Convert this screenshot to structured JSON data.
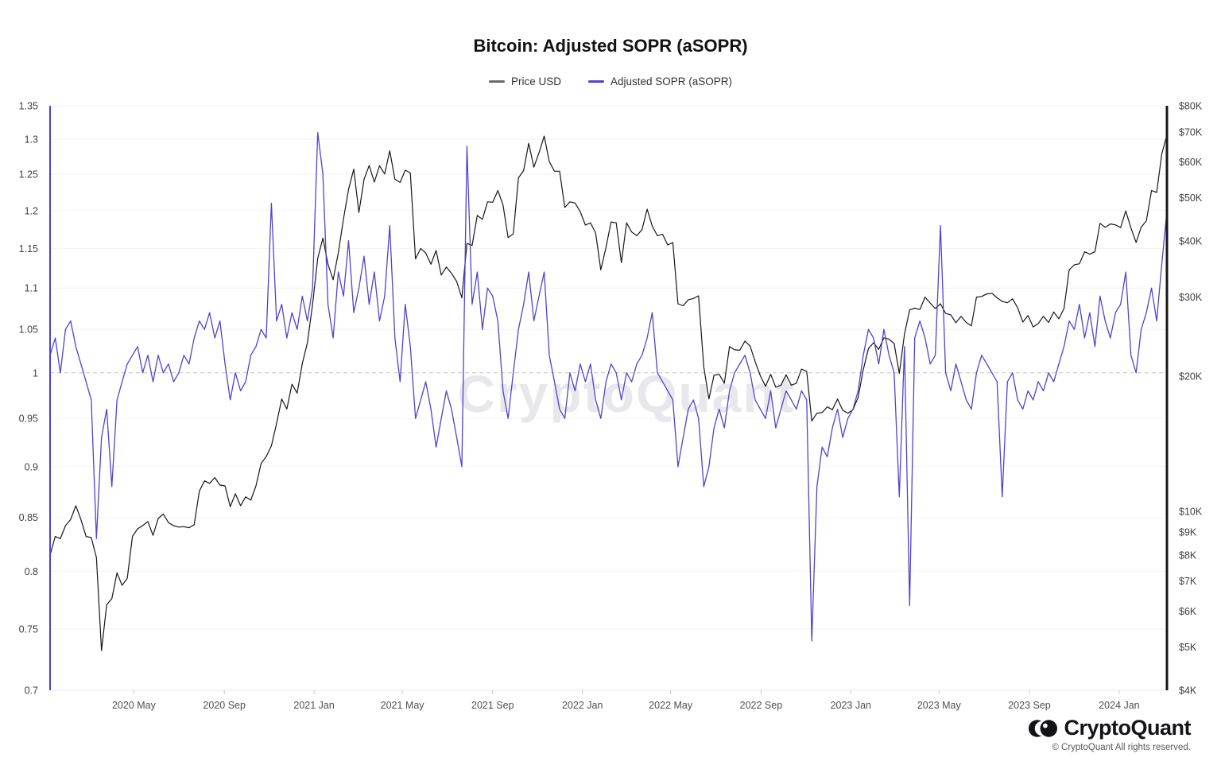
{
  "title": "Bitcoin: Adjusted SOPR (aSOPR)",
  "legend": [
    {
      "label": "Price USD",
      "color": "#6a6a6a"
    },
    {
      "label": "Adjusted SOPR (aSOPR)",
      "color": "#4f43d1"
    }
  ],
  "watermark": "CryptoQuant",
  "footer": {
    "brand": "CryptoQuant",
    "copyright": "© CryptoQuant All rights reserved."
  },
  "chart_data": {
    "type": "line",
    "title": "Bitcoin: Adjusted SOPR (aSOPR)",
    "x_start_date": "2020-01-08",
    "x_interval_days": 7,
    "cadence": "weekly (approx. trace of daily data)",
    "x_ticks": [
      {
        "label": "2020 May",
        "date": "2020-05-01"
      },
      {
        "label": "2020 Sep",
        "date": "2020-09-01"
      },
      {
        "label": "2021 Jan",
        "date": "2021-01-01"
      },
      {
        "label": "2021 May",
        "date": "2021-05-01"
      },
      {
        "label": "2021 Sep",
        "date": "2021-09-01"
      },
      {
        "label": "2022 Jan",
        "date": "2022-01-01"
      },
      {
        "label": "2022 May",
        "date": "2022-05-01"
      },
      {
        "label": "2022 Sep",
        "date": "2022-09-01"
      },
      {
        "label": "2023 Jan",
        "date": "2023-01-01"
      },
      {
        "label": "2023 May",
        "date": "2023-05-01"
      },
      {
        "label": "2023 Sep",
        "date": "2023-09-01"
      },
      {
        "label": "2024 Jan",
        "date": "2024-01-01"
      }
    ],
    "left_axis": {
      "scale": "log",
      "range": [
        0.7,
        1.35
      ],
      "tick_values": [
        1.35,
        1.3,
        1.25,
        1.2,
        1.15,
        1.1,
        1.05,
        1,
        0.95,
        0.9,
        0.85,
        0.8,
        0.75,
        0.7
      ],
      "tick_labels": [
        "1.35",
        "1.3",
        "1.25",
        "1.2",
        "1.15",
        "1.1",
        "1.05",
        "1",
        "0.95",
        "0.9",
        "0.85",
        "0.8",
        "0.75",
        "0.7"
      ]
    },
    "right_axis": {
      "scale": "log",
      "range_usd": [
        4000,
        80000
      ],
      "tick_values_usd": [
        80000,
        70000,
        60000,
        50000,
        40000,
        30000,
        20000,
        10000,
        9000,
        8000,
        7000,
        6000,
        5000,
        4000
      ],
      "tick_labels": [
        "$80K",
        "$70K",
        "$60K",
        "$50K",
        "$40K",
        "$30K",
        "$20K",
        "$10K",
        "$9K",
        "$8K",
        "$7K",
        "$6K",
        "$5K",
        "$4K"
      ]
    },
    "reference_line": 1.0,
    "grid": "horizontal-only",
    "legend_position": "top-center",
    "series": [
      {
        "name": "Price USD",
        "axis": "right",
        "color": "#17171a",
        "values": [
          8000,
          8800,
          8700,
          9300,
          9600,
          10300,
          9600,
          8800,
          8750,
          7900,
          4900,
          6200,
          6400,
          7300,
          6850,
          7100,
          8800,
          9150,
          9300,
          9500,
          8850,
          9650,
          9870,
          9450,
          9300,
          9230,
          9250,
          9200,
          9350,
          11100,
          11700,
          11550,
          11900,
          11450,
          11400,
          10250,
          10950,
          10300,
          10780,
          10600,
          11400,
          12800,
          13250,
          14000,
          15700,
          17800,
          16900,
          19200,
          18350,
          21350,
          23750,
          28900,
          36600,
          40600,
          35500,
          32800,
          37700,
          44800,
          52100,
          57800,
          46300,
          54900,
          58900,
          54100,
          58800,
          56400,
          63500,
          54900,
          54000,
          57500,
          56700,
          36500,
          38500,
          37600,
          35500,
          38100,
          33600,
          35000,
          33900,
          32500,
          29900,
          39500,
          39100,
          45600,
          44700,
          48900,
          48800,
          51800,
          48100,
          40700,
          41500,
          55300,
          57400,
          66000,
          58400,
          62900,
          68500,
          60100,
          57200,
          57200,
          47500,
          48900,
          48600,
          46500,
          43400,
          43900,
          41700,
          34500,
          38700,
          44100,
          43900,
          35800,
          43900,
          41900,
          41100,
          42400,
          47100,
          43200,
          41100,
          41400,
          39200,
          39700,
          29000,
          28700,
          29600,
          29800,
          30200,
          21000,
          17800,
          20100,
          20200,
          19300,
          23300,
          22900,
          22850,
          23950,
          23350,
          21550,
          20050,
          19000,
          20200,
          18900,
          19100,
          20150,
          19100,
          19300,
          20750,
          20500,
          15900,
          16550,
          16600,
          17100,
          16850,
          17800,
          16800,
          16550,
          16850,
          17950,
          20700,
          23050,
          23750,
          22950,
          24350,
          24200,
          23650,
          20300,
          24800,
          28100,
          28350,
          28150,
          30000,
          29100,
          28300,
          29000,
          27600,
          27400,
          26300,
          27200,
          26350,
          25900,
          30000,
          30100,
          30500,
          30600,
          29900,
          29350,
          29150,
          29750,
          28400,
          26400,
          27300,
          25750,
          26200,
          27200,
          26350,
          27800,
          26850,
          28300,
          34500,
          35400,
          35600,
          37850,
          37400,
          37850,
          43800,
          42900,
          43650,
          43450,
          42850,
          46650,
          42750,
          39700,
          42950,
          44350,
          51800,
          51300,
          62500,
          68900
        ]
      },
      {
        "name": "Adjusted SOPR (aSOPR)",
        "axis": "left",
        "color": "#4f43d1",
        "values": [
          1.02,
          1.04,
          1.0,
          1.05,
          1.06,
          1.03,
          1.01,
          0.99,
          0.97,
          0.83,
          0.93,
          0.96,
          0.88,
          0.97,
          0.99,
          1.01,
          1.02,
          1.03,
          1.0,
          1.02,
          0.99,
          1.02,
          1.0,
          1.01,
          0.99,
          1.0,
          1.02,
          1.01,
          1.04,
          1.06,
          1.05,
          1.07,
          1.04,
          1.06,
          1.01,
          0.97,
          1.0,
          0.98,
          0.99,
          1.02,
          1.03,
          1.05,
          1.04,
          1.21,
          1.06,
          1.08,
          1.04,
          1.07,
          1.05,
          1.09,
          1.06,
          1.1,
          1.31,
          1.25,
          1.08,
          1.04,
          1.12,
          1.09,
          1.16,
          1.07,
          1.1,
          1.14,
          1.08,
          1.12,
          1.06,
          1.09,
          1.18,
          1.04,
          0.99,
          1.08,
          1.03,
          0.95,
          0.97,
          0.99,
          0.96,
          0.92,
          0.95,
          0.98,
          0.96,
          0.93,
          0.9,
          1.29,
          1.08,
          1.12,
          1.05,
          1.1,
          1.09,
          1.06,
          0.98,
          0.95,
          1.0,
          1.05,
          1.08,
          1.12,
          1.06,
          1.09,
          1.12,
          1.02,
          0.99,
          0.96,
          0.95,
          1.0,
          0.98,
          1.01,
          0.99,
          1.01,
          0.97,
          0.95,
          0.99,
          1.01,
          1.0,
          0.97,
          1.0,
          0.99,
          1.01,
          1.02,
          1.04,
          1.07,
          1.0,
          0.99,
          0.98,
          0.97,
          0.9,
          0.93,
          0.96,
          0.97,
          0.95,
          0.88,
          0.9,
          0.94,
          0.96,
          0.94,
          0.98,
          1.0,
          1.01,
          1.02,
          1.0,
          0.97,
          0.96,
          0.95,
          0.98,
          0.94,
          0.96,
          0.98,
          0.97,
          0.96,
          0.98,
          0.97,
          0.74,
          0.88,
          0.92,
          0.91,
          0.94,
          0.96,
          0.93,
          0.95,
          0.96,
          0.98,
          1.02,
          1.05,
          1.04,
          1.01,
          1.05,
          1.02,
          1.0,
          0.87,
          1.03,
          0.77,
          1.04,
          1.06,
          1.04,
          1.01,
          1.02,
          1.18,
          1.0,
          0.98,
          1.01,
          0.99,
          0.97,
          0.96,
          1.0,
          1.02,
          1.01,
          1.0,
          0.99,
          0.87,
          0.99,
          1.0,
          0.97,
          0.96,
          0.98,
          0.97,
          0.99,
          0.98,
          1.0,
          0.99,
          1.01,
          1.03,
          1.06,
          1.05,
          1.08,
          1.04,
          1.07,
          1.03,
          1.09,
          1.06,
          1.04,
          1.07,
          1.08,
          1.12,
          1.02,
          1.0,
          1.05,
          1.07,
          1.1,
          1.06,
          1.13,
          1.2
        ]
      }
    ]
  }
}
